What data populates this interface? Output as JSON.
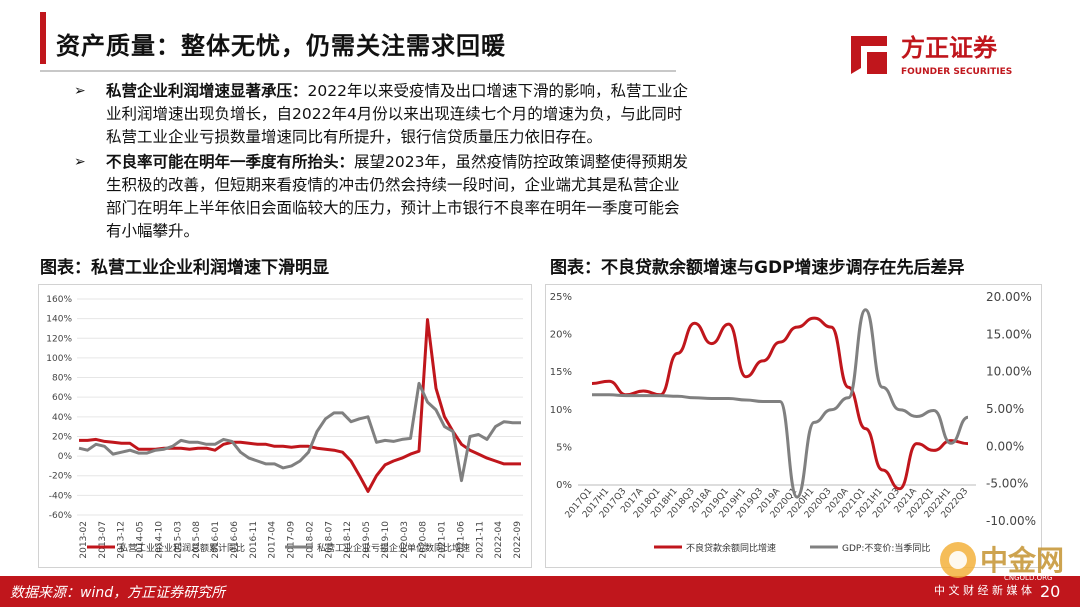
{
  "slide": {
    "title": "资产质量：整体无忧，仍需关注需求回暖",
    "page_number": "20",
    "source": "数据来源：wind，方正证券研究所"
  },
  "logo": {
    "name_cn": "方正证券",
    "name_en": "FOUNDER SECURITIES",
    "color": "#c0161c"
  },
  "watermark": {
    "name_cn": "中金网",
    "url": "CNGOLD.ORG",
    "sub": "中 文 财 经 新 媒 体"
  },
  "bullets": [
    {
      "bold": "私营企业利润增速显著承压：",
      "text": "2022年以来受疫情及出口增速下滑的影响，私营工业企业利润增速出现负增长，自2022年4月份以来出现连续七个月的增速为负，与此同时私营工业企业亏损数量增速同比有所提升，银行信贷质量压力依旧存在。"
    },
    {
      "bold": "不良率可能在明年一季度有所抬头：",
      "text": "展望2023年，虽然疫情防控政策调整使得预期发生积极的改善，但短期来看疫情的冲击仍然会持续一段时间，企业端尤其是私营企业部门在明年上半年依旧会面临较大的压力，预计上市银行不良率在明年一季度可能会有小幅攀升。"
    }
  ],
  "chart_data": [
    {
      "type": "line",
      "title": "图表：私营工业企业利润增速下滑明显",
      "ylim": [
        -60,
        160
      ],
      "yticks": [
        "-60%",
        "-40%",
        "-20%",
        "0%",
        "20%",
        "40%",
        "60%",
        "80%",
        "100%",
        "120%",
        "140%",
        "160%"
      ],
      "xticks": [
        "2013-02",
        "2013-07",
        "2013-12",
        "2014-05",
        "2014-10",
        "2015-03",
        "2015-08",
        "2016-01",
        "2016-06",
        "2016-11",
        "2017-04",
        "2017-09",
        "2018-02",
        "2018-07",
        "2018-12",
        "2019-05",
        "2019-10",
        "2020-03",
        "2020-08",
        "2021-01",
        "2021-06",
        "2021-11",
        "2022-04",
        "2022-09"
      ],
      "series": [
        {
          "name": "私营工业企业利润总额累计同比",
          "color": "#c0161c",
          "values": [
            16,
            16,
            17,
            15,
            14,
            13,
            13,
            7,
            7,
            7,
            8,
            8,
            8,
            7,
            8,
            8,
            6,
            12,
            14,
            14,
            13,
            12,
            12,
            10,
            10,
            9,
            10,
            10,
            8,
            7,
            6,
            4,
            -5,
            -20,
            -36,
            -20,
            -9,
            -5,
            -2,
            2,
            5,
            139,
            69,
            40,
            25,
            12,
            6,
            2,
            -2,
            -5,
            -8,
            -8,
            -8
          ]
        },
        {
          "name": "私营工业企业亏损企业单位数同比增速",
          "color": "#808080",
          "values": [
            8,
            6,
            12,
            10,
            2,
            4,
            6,
            3,
            3,
            6,
            7,
            10,
            16,
            14,
            14,
            12,
            12,
            17,
            15,
            4,
            -2,
            -5,
            -8,
            -8,
            -12,
            -10,
            -5,
            4,
            25,
            38,
            44,
            44,
            35,
            38,
            40,
            14,
            16,
            15,
            17,
            18,
            74,
            55,
            47,
            30,
            25,
            -25,
            20,
            22,
            17,
            30,
            35,
            34,
            34
          ]
        }
      ]
    },
    {
      "type": "line",
      "title": "图表：不良贷款余额增速与GDP增速步调存在先后差异",
      "left_yticks": [
        "0%",
        "5%",
        "10%",
        "15%",
        "20%",
        "25%"
      ],
      "right_yticks": [
        "-10.00%",
        "-5.00%",
        "0.00%",
        "5.00%",
        "10.00%",
        "15.00%",
        "20.00%"
      ],
      "left_ylim": [
        0,
        25
      ],
      "right_ylim": [
        -10,
        20
      ],
      "xticks": [
        "2017Q1",
        "2017H1",
        "2017Q3",
        "2017A",
        "2018Q1",
        "2018H1",
        "2018Q3",
        "2018A",
        "2019Q1",
        "2019H1",
        "2019Q3",
        "2019A",
        "2020Q1",
        "2020H1",
        "2020Q3",
        "2020A",
        "2021Q1",
        "2021H1",
        "2021Q3",
        "2021A",
        "2022Q1",
        "2022H1",
        "2022Q3"
      ],
      "series": [
        {
          "name": "不良贷款余额同比增速",
          "axis": "left",
          "color": "#c0161c",
          "values": [
            13.5,
            13.8,
            12.0,
            12.5,
            12.0,
            17.5,
            21.5,
            18.8,
            21.4,
            14.4,
            16.5,
            19.0,
            21.0,
            22.2,
            21.0,
            13.0,
            7.5,
            2.0,
            -0.5,
            5.5,
            4.6,
            5.9,
            5.5
          ]
        },
        {
          "name": "GDP:不变价:当季同比",
          "axis": "right",
          "color": "#808080",
          "values": [
            6.9,
            6.9,
            6.8,
            6.8,
            6.8,
            6.7,
            6.5,
            6.4,
            6.4,
            6.2,
            6.0,
            6.0,
            -6.8,
            3.2,
            4.9,
            6.5,
            18.3,
            7.9,
            4.9,
            4.0,
            4.8,
            0.4,
            3.9
          ]
        }
      ]
    }
  ]
}
